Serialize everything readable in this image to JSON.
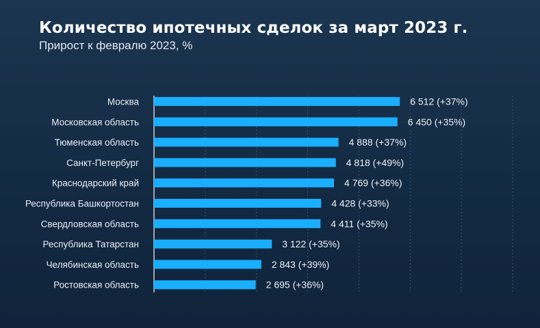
{
  "header": {
    "title": "Количество ипотечных сделок за март 2023 г.",
    "subtitle": "Прирост к февралю 2023, %"
  },
  "colors": {
    "bar": "#1aaeff",
    "grid": "#4a6985"
  },
  "chart_data": {
    "type": "bar",
    "orientation": "horizontal",
    "title": "Количество ипотечных сделок за март 2023 г.",
    "subtitle": "Прирост к февралю 2023, %",
    "xlabel": "",
    "ylabel": "",
    "grid": true,
    "xlim": [
      0,
      9500
    ],
    "categories": [
      "Москва",
      "Московская область",
      "Тюменская область",
      "Санкт-Петербург",
      "Краснодарский край",
      "Республика Башкортостан",
      "Свердловская область",
      "Республика Татарстан",
      "Челябинская область",
      "Ростовская область"
    ],
    "values": [
      6512,
      6450,
      4888,
      4818,
      4769,
      4428,
      4411,
      3122,
      2843,
      2695
    ],
    "data_labels": [
      "6 512 (+37%)",
      "6 450 (+35%)",
      "4 888 (+37%)",
      "4 818 (+49%)",
      "4 769 (+36%)",
      "4 428 (+33%)",
      "4 411 (+35%)",
      "3 122 (+35%)",
      "2 843 (+39%)",
      "2 695 (+36%)"
    ]
  }
}
